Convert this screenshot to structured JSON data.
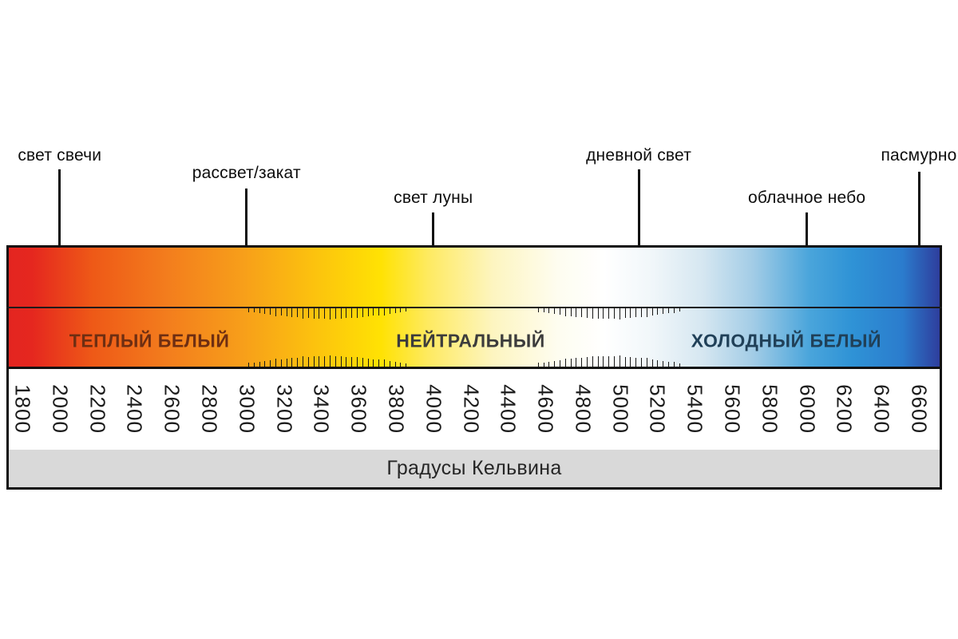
{
  "page": {
    "background": "#ffffff"
  },
  "colors": {
    "line": "#111111",
    "dot": "#1d1d1d",
    "number_text": "#1c1c1c",
    "axis_band_bg": "#d9d9d9",
    "axis_title_text": "#262626"
  },
  "chart_data": {
    "type": "scale",
    "axis_title": "Градусы Кельвина",
    "axis_min": 1800,
    "axis_max": 6600,
    "axis_step": 200,
    "tick_values": [
      1800,
      2000,
      2200,
      2400,
      2600,
      2800,
      3000,
      3200,
      3400,
      3600,
      3800,
      4000,
      4200,
      4400,
      4600,
      4800,
      5000,
      5200,
      5400,
      5600,
      5800,
      6000,
      6200,
      6400,
      6600
    ],
    "milestones": [
      {
        "label": "свет свечи",
        "kelvin": 2000
      },
      {
        "label": "рассвет/закат",
        "kelvin": 3000
      },
      {
        "label": "свет луны",
        "kelvin": 4000
      },
      {
        "label": "дневной свет",
        "kelvin": 5100
      },
      {
        "label": "облачное небо",
        "kelvin": 6000
      },
      {
        "label": "пасмурно",
        "kelvin": 6600
      }
    ],
    "zones": [
      {
        "label": "ТЕПЛЫЙ БЕЛЫЙ",
        "range_k": [
          1800,
          3000
        ],
        "label_center_k": 2480,
        "text_color": "#6e2e12"
      },
      {
        "label": "НЕЙТРАЛЬНЫЙ",
        "range_k": [
          3880,
          4560
        ],
        "label_center_k": 4200,
        "text_color": "#3c3c3c"
      },
      {
        "label": "ХОЛОДНЫЙ БЕЛЫЙ",
        "range_k": [
          5340,
          6600
        ],
        "label_center_k": 5890,
        "text_color": "#204058"
      }
    ],
    "transition_tick_regions_k": [
      [
        3010,
        3880
      ],
      [
        4560,
        5340
      ]
    ],
    "gradient_stops": [
      {
        "pos": 0.0,
        "color": "#e42520"
      },
      {
        "pos": 0.025,
        "color": "#e5271f"
      },
      {
        "pos": 0.09,
        "color": "#ee5917"
      },
      {
        "pos": 0.17,
        "color": "#f37d1d"
      },
      {
        "pos": 0.25,
        "color": "#f79e1a"
      },
      {
        "pos": 0.33,
        "color": "#fcc30e"
      },
      {
        "pos": 0.4,
        "color": "#ffe203"
      },
      {
        "pos": 0.45,
        "color": "#feea60"
      },
      {
        "pos": 0.52,
        "color": "#fdf5c0"
      },
      {
        "pos": 0.59,
        "color": "#fefdf0"
      },
      {
        "pos": 0.64,
        "color": "#ffffff"
      },
      {
        "pos": 0.69,
        "color": "#f1f7fa"
      },
      {
        "pos": 0.745,
        "color": "#d6e7f1"
      },
      {
        "pos": 0.8,
        "color": "#a2cce6"
      },
      {
        "pos": 0.86,
        "color": "#4aa5db"
      },
      {
        "pos": 0.905,
        "color": "#2f93d6"
      },
      {
        "pos": 0.96,
        "color": "#2b7ccd"
      },
      {
        "pos": 1.0,
        "color": "#2e3e9d"
      }
    ]
  }
}
